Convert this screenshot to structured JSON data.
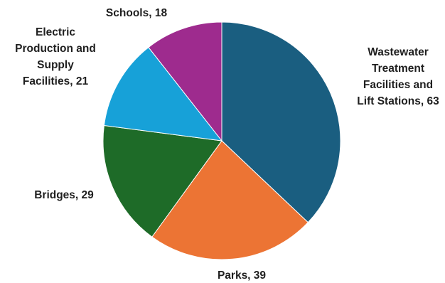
{
  "chart_data": {
    "type": "pie",
    "title": "",
    "start_angle_deg": 0,
    "direction": "clockwise",
    "legend": "none",
    "slices": [
      {
        "label": "Wastewater Treatment Facilities and Lift Stations",
        "value": 63,
        "color": "#1a5e80",
        "label_text": "Wastewater Treatment Facilities and Lift Stations, 63"
      },
      {
        "label": "Parks",
        "value": 39,
        "color": "#ec7434",
        "label_text": "Parks, 39"
      },
      {
        "label": "Bridges",
        "value": 29,
        "color": "#1e6b28",
        "label_text": "Bridges, 29"
      },
      {
        "label": "Electric Production and Supply Facilities",
        "value": 21,
        "color": "#17a1d8",
        "label_text": "Electric Production and Supply Facilities, 21"
      },
      {
        "label": "Schools",
        "value": 18,
        "color": "#9e2b8e",
        "label_text": "Schools, 18"
      }
    ]
  }
}
